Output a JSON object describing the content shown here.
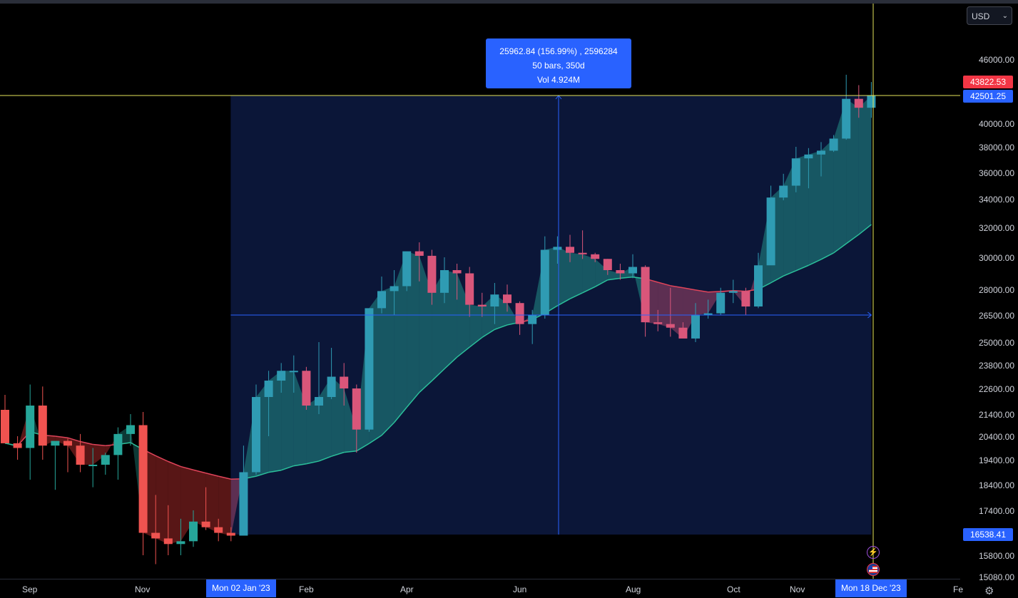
{
  "currency": {
    "selected": "USD"
  },
  "measure": {
    "line1": "25962.84 (156.99%) , 2596284",
    "line2": "50 bars, 350d",
    "line3": "Vol 4.924M"
  },
  "price_axis": {
    "labels": [
      "46000.00",
      "40000.00",
      "38000.00",
      "36000.00",
      "34000.00",
      "32000.00",
      "30000.00",
      "28000.00",
      "26500.00",
      "25000.00",
      "23800.00",
      "22600.00",
      "21400.00",
      "20400.00",
      "19400.00",
      "18400.00",
      "17400.00",
      "15800.00",
      "15080.00"
    ],
    "badges": {
      "high": "43822.53",
      "crosshair": "42501.25",
      "low": "16538.41"
    }
  },
  "time_axis": {
    "labels": [
      "Sep",
      "Nov",
      "Feb",
      "Apr",
      "Jun",
      "Aug",
      "Oct",
      "Nov",
      "Fe"
    ],
    "start_badge": "Mon 02 Jan '23",
    "end_badge": "Mon 18 Dec '23"
  },
  "colors": {
    "up": "#26a69a",
    "up_selected": "#2f9bb3",
    "down": "#ef5350",
    "down_selected": "#d9567a",
    "accent": "#2962ff",
    "crosshair": "#e5e55a",
    "selection_bg": "#0b1638"
  },
  "icons": {
    "event_1": "lightning-icon",
    "event_2": "us-flag-icon",
    "settings": "gear-icon"
  },
  "chart_data": {
    "type": "candlestick",
    "interval": "weekly",
    "price_range": [
      15080,
      46000
    ],
    "price_scale": "log",
    "series": [
      {
        "name": "",
        "date": "2022-08-22",
        "o": 21600,
        "h": 22300,
        "l": 20400,
        "c": 20100
      },
      {
        "name": "",
        "date": "2022-08-29",
        "o": 20100,
        "h": 20400,
        "l": 19400,
        "c": 19900
      },
      {
        "name": "",
        "date": "2022-09-05",
        "o": 19900,
        "h": 22800,
        "l": 18600,
        "c": 21800
      },
      {
        "name": "",
        "date": "2022-09-12",
        "o": 21800,
        "h": 22700,
        "l": 19400,
        "c": 20000
      },
      {
        "name": "",
        "date": "2022-09-19",
        "o": 20000,
        "h": 20000,
        "l": 18200,
        "c": 20200
      },
      {
        "name": "",
        "date": "2022-09-26",
        "o": 20200,
        "h": 20300,
        "l": 18900,
        "c": 20000
      },
      {
        "name": "",
        "date": "2022-10-03",
        "o": 20000,
        "h": 20500,
        "l": 18900,
        "c": 19200
      },
      {
        "name": "",
        "date": "2022-10-10",
        "o": 19200,
        "h": 19900,
        "l": 18300,
        "c": 19200
      },
      {
        "name": "",
        "date": "2022-10-17",
        "o": 19200,
        "h": 19700,
        "l": 18800,
        "c": 19600
      },
      {
        "name": "",
        "date": "2022-10-24",
        "o": 19600,
        "h": 20800,
        "l": 18600,
        "c": 20500
      },
      {
        "name": "",
        "date": "2022-10-31",
        "o": 20500,
        "h": 21400,
        "l": 20000,
        "c": 20900
      },
      {
        "name": "",
        "date": "2022-11-07",
        "o": 20900,
        "h": 21500,
        "l": 15800,
        "c": 16600
      },
      {
        "name": "",
        "date": "2022-11-14",
        "o": 16600,
        "h": 18000,
        "l": 15500,
        "c": 16400
      },
      {
        "name": "",
        "date": "2022-11-21",
        "o": 16400,
        "h": 17600,
        "l": 15800,
        "c": 16200
      },
      {
        "name": "",
        "date": "2022-11-28",
        "o": 16200,
        "h": 17100,
        "l": 15800,
        "c": 16300
      },
      {
        "name": "",
        "date": "2022-12-05",
        "o": 16300,
        "h": 17400,
        "l": 16100,
        "c": 17000
      },
      {
        "name": "",
        "date": "2022-12-12",
        "o": 17000,
        "h": 18300,
        "l": 16700,
        "c": 16800
      },
      {
        "name": "",
        "date": "2022-12-19",
        "o": 16800,
        "h": 17100,
        "l": 16300,
        "c": 16600
      },
      {
        "name": "",
        "date": "2022-12-26",
        "o": 16600,
        "h": 16800,
        "l": 16300,
        "c": 16500
      },
      {
        "name": "",
        "date": "2023-01-02",
        "o": 16500,
        "h": 20000,
        "l": 16500,
        "c": 18900
      },
      {
        "name": "",
        "date": "2023-01-09",
        "o": 18900,
        "h": 22800,
        "l": 18800,
        "c": 22200
      },
      {
        "name": "",
        "date": "2023-01-16",
        "o": 22200,
        "h": 23500,
        "l": 20400,
        "c": 23000
      },
      {
        "name": "",
        "date": "2023-01-23",
        "o": 23000,
        "h": 23900,
        "l": 22400,
        "c": 23500
      },
      {
        "name": "",
        "date": "2023-01-30",
        "o": 23500,
        "h": 24300,
        "l": 22400,
        "c": 23500
      },
      {
        "name": "",
        "date": "2023-02-06",
        "o": 23500,
        "h": 23700,
        "l": 21600,
        "c": 21800
      },
      {
        "name": "",
        "date": "2023-02-13",
        "o": 21800,
        "h": 25000,
        "l": 21400,
        "c": 22200
      },
      {
        "name": "",
        "date": "2023-02-20",
        "o": 22200,
        "h": 24700,
        "l": 22100,
        "c": 23200
      },
      {
        "name": "",
        "date": "2023-02-27",
        "o": 23200,
        "h": 23900,
        "l": 21800,
        "c": 22600
      },
      {
        "name": "",
        "date": "2023-03-06",
        "o": 22600,
        "h": 22800,
        "l": 19700,
        "c": 20700
      },
      {
        "name": "",
        "date": "2023-03-13",
        "o": 20700,
        "h": 26500,
        "l": 20600,
        "c": 26900
      },
      {
        "name": "",
        "date": "2023-03-20",
        "o": 26900,
        "h": 28800,
        "l": 26600,
        "c": 27900
      },
      {
        "name": "",
        "date": "2023-03-27",
        "o": 27900,
        "h": 29200,
        "l": 26500,
        "c": 28200
      },
      {
        "name": "",
        "date": "2023-04-03",
        "o": 28200,
        "h": 30200,
        "l": 27900,
        "c": 30400
      },
      {
        "name": "",
        "date": "2023-04-10",
        "o": 30400,
        "h": 31000,
        "l": 28500,
        "c": 30100
      },
      {
        "name": "",
        "date": "2023-04-17",
        "o": 30100,
        "h": 30500,
        "l": 27100,
        "c": 27800
      },
      {
        "name": "",
        "date": "2023-04-24",
        "o": 27800,
        "h": 30000,
        "l": 27200,
        "c": 29200
      },
      {
        "name": "",
        "date": "2023-05-01",
        "o": 29200,
        "h": 29600,
        "l": 27400,
        "c": 29000
      },
      {
        "name": "",
        "date": "2023-05-08",
        "o": 29000,
        "h": 29400,
        "l": 26400,
        "c": 27100
      },
      {
        "name": "",
        "date": "2023-05-15",
        "o": 27100,
        "h": 27800,
        "l": 26400,
        "c": 27000
      },
      {
        "name": "",
        "date": "2023-05-22",
        "o": 27000,
        "h": 28400,
        "l": 26000,
        "c": 27700
      },
      {
        "name": "",
        "date": "2023-05-29",
        "o": 27700,
        "h": 28300,
        "l": 26700,
        "c": 27200
      },
      {
        "name": "",
        "date": "2023-06-05",
        "o": 27200,
        "h": 27300,
        "l": 25400,
        "c": 26000
      },
      {
        "name": "",
        "date": "2023-06-12",
        "o": 26000,
        "h": 26800,
        "l": 24900,
        "c": 26500
      },
      {
        "name": "",
        "date": "2023-06-19",
        "o": 26500,
        "h": 31400,
        "l": 26300,
        "c": 30500
      },
      {
        "name": "",
        "date": "2023-06-26",
        "o": 30500,
        "h": 31400,
        "l": 29600,
        "c": 30700
      },
      {
        "name": "",
        "date": "2023-07-03",
        "o": 30700,
        "h": 31500,
        "l": 29700,
        "c": 30300
      },
      {
        "name": "",
        "date": "2023-07-10",
        "o": 30300,
        "h": 31800,
        "l": 29900,
        "c": 30200
      },
      {
        "name": "",
        "date": "2023-07-17",
        "o": 30200,
        "h": 30300,
        "l": 29700,
        "c": 29900
      },
      {
        "name": "",
        "date": "2023-07-24",
        "o": 29900,
        "h": 29900,
        "l": 28900,
        "c": 29200
      },
      {
        "name": "",
        "date": "2023-07-31",
        "o": 29200,
        "h": 29600,
        "l": 28600,
        "c": 29000
      },
      {
        "name": "",
        "date": "2023-08-07",
        "o": 29000,
        "h": 30200,
        "l": 28700,
        "c": 29400
      },
      {
        "name": "",
        "date": "2023-08-14",
        "o": 29400,
        "h": 29500,
        "l": 25300,
        "c": 26100
      },
      {
        "name": "",
        "date": "2023-08-21",
        "o": 26100,
        "h": 26800,
        "l": 25600,
        "c": 26000
      },
      {
        "name": "",
        "date": "2023-08-28",
        "o": 26000,
        "h": 28100,
        "l": 25300,
        "c": 25800
      },
      {
        "name": "",
        "date": "2023-09-04",
        "o": 25800,
        "h": 26100,
        "l": 25300,
        "c": 25200
      },
      {
        "name": "",
        "date": "2023-09-11",
        "o": 25200,
        "h": 27200,
        "l": 25000,
        "c": 26500
      },
      {
        "name": "",
        "date": "2023-09-18",
        "o": 26500,
        "h": 27400,
        "l": 26300,
        "c": 26600
      },
      {
        "name": "",
        "date": "2023-09-25",
        "o": 26600,
        "h": 28100,
        "l": 26500,
        "c": 27800
      },
      {
        "name": "",
        "date": "2023-10-02",
        "o": 27800,
        "h": 28600,
        "l": 27200,
        "c": 27900
      },
      {
        "name": "",
        "date": "2023-10-09",
        "o": 27900,
        "h": 28100,
        "l": 26500,
        "c": 27000
      },
      {
        "name": "",
        "date": "2023-10-16",
        "o": 27000,
        "h": 30300,
        "l": 26900,
        "c": 29500
      },
      {
        "name": "",
        "date": "2023-10-23",
        "o": 29500,
        "h": 35000,
        "l": 29600,
        "c": 34100
      },
      {
        "name": "",
        "date": "2023-10-30",
        "o": 34100,
        "h": 35900,
        "l": 33900,
        "c": 35000
      },
      {
        "name": "",
        "date": "2023-11-06",
        "o": 35000,
        "h": 38000,
        "l": 34500,
        "c": 37100
      },
      {
        "name": "",
        "date": "2023-11-13",
        "o": 37100,
        "h": 37900,
        "l": 34800,
        "c": 37400
      },
      {
        "name": "",
        "date": "2023-11-20",
        "o": 37400,
        "h": 38400,
        "l": 35700,
        "c": 37700
      },
      {
        "name": "",
        "date": "2023-11-27",
        "o": 37700,
        "h": 39000,
        "l": 37600,
        "c": 38700
      },
      {
        "name": "",
        "date": "2023-12-04",
        "o": 38700,
        "h": 44500,
        "l": 38600,
        "c": 42200
      },
      {
        "name": "",
        "date": "2023-12-11",
        "o": 42200,
        "h": 43500,
        "l": 40500,
        "c": 41400
      },
      {
        "name": "",
        "date": "2023-12-18",
        "o": 41400,
        "h": 43800,
        "l": 40500,
        "c": 42500
      }
    ]
  }
}
